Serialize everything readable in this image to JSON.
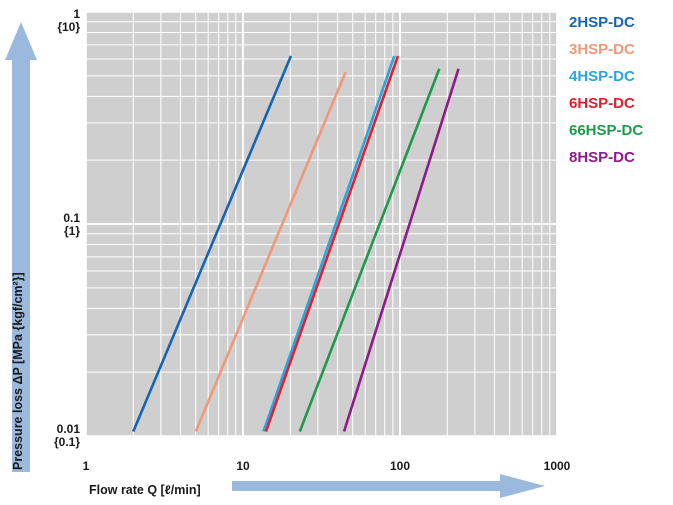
{
  "chart_data": {
    "type": "line",
    "xscale": "log",
    "yscale": "log",
    "xlim": [
      1,
      1000
    ],
    "ylim": [
      0.01,
      1
    ],
    "grid": true,
    "legend_position": "right",
    "plot_background": "#cfcfcf",
    "grid_color": "#ffffff",
    "arrow_color": "#9bb9dc",
    "xlabel": "Flow rate Q [ℓ/min]",
    "ylabel": "Pressure loss ΔP [MPa {kgf/cm²}]",
    "x_ticks": [
      {
        "value": 1,
        "label": "1"
      },
      {
        "value": 10,
        "label": "10"
      },
      {
        "value": 100,
        "label": "100"
      },
      {
        "value": 1000,
        "label": "1000"
      }
    ],
    "y_ticks": [
      {
        "value": 0.01,
        "label": "0.01",
        "sublabel": "{0.1}"
      },
      {
        "value": 0.1,
        "label": "0.1",
        "sublabel": "{1}"
      },
      {
        "value": 1,
        "label": "1",
        "sublabel": "{10}"
      }
    ],
    "series": [
      {
        "name": "2HSP-DC",
        "color": "#1565b3",
        "points": [
          [
            2.0,
            0.0105
          ],
          [
            20.2,
            0.62
          ]
        ]
      },
      {
        "name": "3HSP-DC",
        "color": "#f0987a",
        "points": [
          [
            5.0,
            0.0105
          ],
          [
            45.0,
            0.52
          ]
        ]
      },
      {
        "name": "4HSP-DC",
        "color": "#2aa4e0",
        "points": [
          [
            13.5,
            0.0105
          ],
          [
            92.0,
            0.62
          ]
        ]
      },
      {
        "name": "6HSP-DC",
        "color": "#e0202e",
        "points": [
          [
            14.0,
            0.0105
          ],
          [
            97.0,
            0.62
          ]
        ]
      },
      {
        "name": "66HSP-DC",
        "color": "#1f9a4a",
        "points": [
          [
            23.0,
            0.0105
          ],
          [
            178.0,
            0.54
          ]
        ]
      },
      {
        "name": "8HSP-DC",
        "color": "#8e1b86",
        "points": [
          [
            44.0,
            0.0105
          ],
          [
            236.0,
            0.54
          ]
        ]
      }
    ]
  }
}
